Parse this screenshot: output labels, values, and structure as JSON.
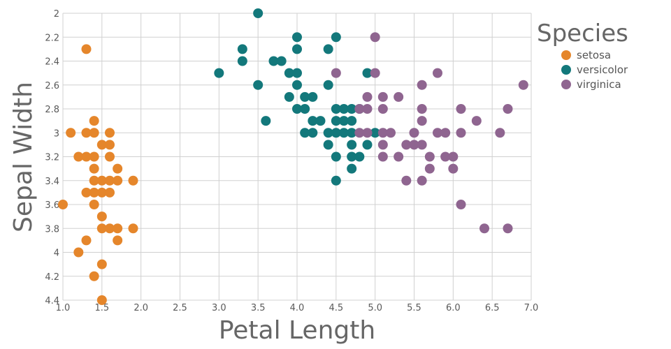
{
  "chart_data": {
    "type": "scatter",
    "xlabel": "Petal Length",
    "ylabel": "Sepal Width",
    "xlim": [
      1.0,
      7.0
    ],
    "ylim": [
      2.0,
      4.4
    ],
    "y_inverted": true,
    "grid": true,
    "x_ticks": [
      "1.0",
      "1.5",
      "2.0",
      "2.5",
      "3.0",
      "3.5",
      "4.0",
      "4.5",
      "5.0",
      "5.5",
      "6.0",
      "6.5",
      "7.0"
    ],
    "y_ticks": [
      "2",
      "2.2",
      "2.4",
      "2.6",
      "2.8",
      "3",
      "3.2",
      "3.4",
      "3.6",
      "3.8",
      "4",
      "4.2",
      "4.4"
    ],
    "legend": {
      "title": "Species",
      "position": "top-right"
    },
    "series": [
      {
        "name": "setosa",
        "color": "#e5862b",
        "points": [
          [
            1.3,
            2.3
          ],
          [
            1.1,
            3.0
          ],
          [
            1.3,
            3.0
          ],
          [
            1.4,
            3.0
          ],
          [
            1.6,
            3.0
          ],
          [
            1.4,
            2.9
          ],
          [
            1.5,
            3.1
          ],
          [
            1.6,
            3.1
          ],
          [
            1.2,
            3.2
          ],
          [
            1.3,
            3.2
          ],
          [
            1.4,
            3.2
          ],
          [
            1.6,
            3.2
          ],
          [
            1.4,
            3.3
          ],
          [
            1.7,
            3.3
          ],
          [
            1.4,
            3.4
          ],
          [
            1.5,
            3.4
          ],
          [
            1.6,
            3.4
          ],
          [
            1.7,
            3.4
          ],
          [
            1.9,
            3.4
          ],
          [
            1.3,
            3.5
          ],
          [
            1.4,
            3.5
          ],
          [
            1.5,
            3.5
          ],
          [
            1.6,
            3.5
          ],
          [
            1.0,
            3.6
          ],
          [
            1.4,
            3.6
          ],
          [
            1.5,
            3.7
          ],
          [
            1.5,
            3.8
          ],
          [
            1.6,
            3.8
          ],
          [
            1.7,
            3.8
          ],
          [
            1.9,
            3.8
          ],
          [
            1.3,
            3.9
          ],
          [
            1.7,
            3.9
          ],
          [
            1.2,
            4.0
          ],
          [
            1.5,
            4.1
          ],
          [
            1.4,
            4.2
          ],
          [
            1.5,
            4.4
          ]
        ]
      },
      {
        "name": "versicolor",
        "color": "#13787b",
        "points": [
          [
            3.5,
            2.0
          ],
          [
            4.0,
            2.2
          ],
          [
            4.5,
            2.2
          ],
          [
            3.3,
            2.3
          ],
          [
            4.0,
            2.3
          ],
          [
            4.4,
            2.3
          ],
          [
            3.3,
            2.4
          ],
          [
            3.7,
            2.4
          ],
          [
            3.8,
            2.4
          ],
          [
            3.0,
            2.5
          ],
          [
            3.9,
            2.5
          ],
          [
            4.0,
            2.5
          ],
          [
            4.9,
            2.5
          ],
          [
            3.5,
            2.6
          ],
          [
            4.0,
            2.6
          ],
          [
            4.4,
            2.6
          ],
          [
            3.9,
            2.7
          ],
          [
            4.1,
            2.7
          ],
          [
            4.2,
            2.7
          ],
          [
            4.0,
            2.8
          ],
          [
            4.1,
            2.8
          ],
          [
            4.5,
            2.8
          ],
          [
            4.6,
            2.8
          ],
          [
            4.7,
            2.8
          ],
          [
            4.8,
            2.8
          ],
          [
            3.6,
            2.9
          ],
          [
            4.2,
            2.9
          ],
          [
            4.3,
            2.9
          ],
          [
            4.5,
            2.9
          ],
          [
            4.6,
            2.9
          ],
          [
            4.7,
            2.9
          ],
          [
            4.1,
            3.0
          ],
          [
            4.2,
            3.0
          ],
          [
            4.4,
            3.0
          ],
          [
            4.5,
            3.0
          ],
          [
            4.6,
            3.0
          ],
          [
            4.7,
            3.0
          ],
          [
            5.0,
            3.0
          ],
          [
            4.4,
            3.1
          ],
          [
            4.7,
            3.1
          ],
          [
            4.9,
            3.1
          ],
          [
            4.5,
            3.2
          ],
          [
            4.7,
            3.2
          ],
          [
            4.8,
            3.2
          ],
          [
            4.7,
            3.3
          ],
          [
            4.5,
            3.4
          ]
        ]
      },
      {
        "name": "virginica",
        "color": "#8f6590",
        "points": [
          [
            5.0,
            2.2
          ],
          [
            4.5,
            2.5
          ],
          [
            5.0,
            2.5
          ],
          [
            5.8,
            2.5
          ],
          [
            5.6,
            2.6
          ],
          [
            6.9,
            2.6
          ],
          [
            4.9,
            2.7
          ],
          [
            5.1,
            2.7
          ],
          [
            5.3,
            2.7
          ],
          [
            4.8,
            2.8
          ],
          [
            4.9,
            2.8
          ],
          [
            5.1,
            2.8
          ],
          [
            5.6,
            2.8
          ],
          [
            6.1,
            2.8
          ],
          [
            6.7,
            2.8
          ],
          [
            5.6,
            2.9
          ],
          [
            6.3,
            2.9
          ],
          [
            4.8,
            3.0
          ],
          [
            4.9,
            3.0
          ],
          [
            5.1,
            3.0
          ],
          [
            5.2,
            3.0
          ],
          [
            5.5,
            3.0
          ],
          [
            5.8,
            3.0
          ],
          [
            5.9,
            3.0
          ],
          [
            6.1,
            3.0
          ],
          [
            6.6,
            3.0
          ],
          [
            5.1,
            3.1
          ],
          [
            5.4,
            3.1
          ],
          [
            5.5,
            3.1
          ],
          [
            5.6,
            3.1
          ],
          [
            5.1,
            3.2
          ],
          [
            5.3,
            3.2
          ],
          [
            5.7,
            3.2
          ],
          [
            5.9,
            3.2
          ],
          [
            6.0,
            3.2
          ],
          [
            5.7,
            3.3
          ],
          [
            6.0,
            3.3
          ],
          [
            5.4,
            3.4
          ],
          [
            5.6,
            3.4
          ],
          [
            6.1,
            3.6
          ],
          [
            6.4,
            3.8
          ],
          [
            6.7,
            3.8
          ]
        ]
      }
    ]
  }
}
